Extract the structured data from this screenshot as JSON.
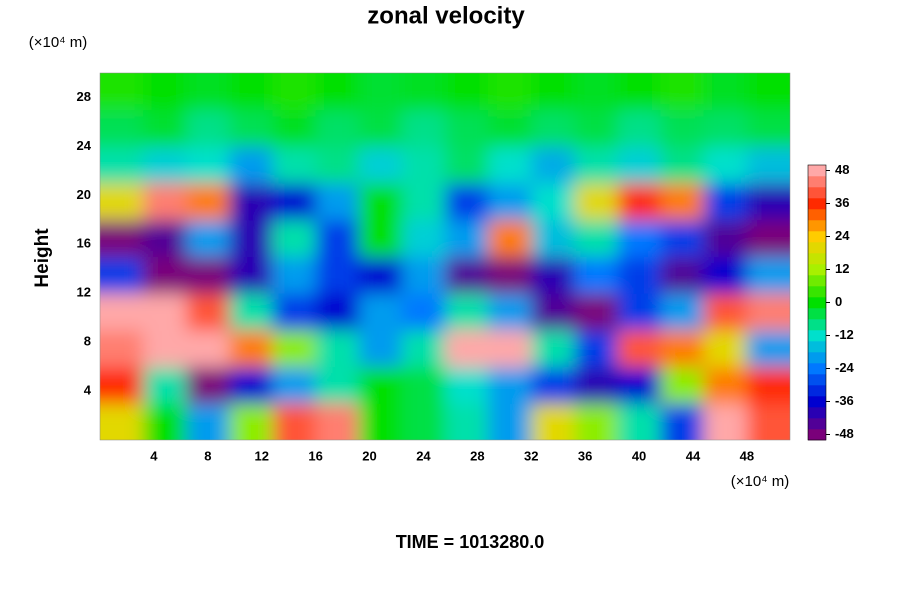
{
  "chart_data": {
    "type": "heatmap",
    "title": "zonal velocity",
    "y_unit": "(×10⁴ m)",
    "x_unit": "(×10⁴ m)",
    "ylabel": "Height",
    "footer": "TIME = 1013280.0",
    "xlim": [
      0,
      51.2
    ],
    "ylim": [
      0,
      30
    ],
    "xticks": [
      4,
      8,
      12,
      16,
      20,
      24,
      28,
      32,
      36,
      40,
      44,
      48
    ],
    "yticks": [
      4,
      8,
      12,
      16,
      20,
      24,
      28
    ],
    "clim": [
      -50,
      50
    ],
    "cticks": [
      48,
      36,
      24,
      12,
      0,
      -12,
      -24,
      -36,
      -48
    ],
    "colorscale": [
      "#ffa8a8",
      "#ff2a00",
      "#ffcc00",
      "#a8f000",
      "#00e000",
      "#00e0cc",
      "#0078ff",
      "#0000d0",
      "#7a007a"
    ],
    "x": [
      1.6,
      4.8,
      8,
      11.2,
      14.4,
      17.6,
      20.8,
      24,
      27.2,
      30.4,
      33.6,
      36.8,
      40,
      43.2,
      46.4,
      49.6
    ],
    "y": [
      1.5,
      4.5,
      7.5,
      10.5,
      13.5,
      16.5,
      19.5,
      22.5,
      25.5,
      28.5
    ],
    "z": [
      [
        20,
        0,
        -20,
        10,
        40,
        44,
        0,
        -4,
        -10,
        -20,
        20,
        10,
        -10,
        -30,
        48,
        40
      ],
      [
        36,
        -10,
        -48,
        -36,
        -20,
        -10,
        0,
        -4,
        -12,
        -20,
        -30,
        -40,
        -36,
        10,
        30,
        36
      ],
      [
        44,
        48,
        48,
        30,
        10,
        -10,
        -20,
        -10,
        48,
        48,
        -10,
        -30,
        40,
        30,
        20,
        -20
      ],
      [
        48,
        48,
        40,
        -10,
        -30,
        -36,
        -20,
        -24,
        -10,
        -20,
        -44,
        -48,
        -30,
        -20,
        40,
        44
      ],
      [
        -30,
        -48,
        -48,
        -40,
        -20,
        -30,
        -36,
        -20,
        -44,
        -48,
        -40,
        -24,
        -30,
        -44,
        -36,
        -20
      ],
      [
        -48,
        -44,
        -20,
        -40,
        -10,
        -30,
        0,
        -14,
        -20,
        30,
        -16,
        -10,
        -24,
        -30,
        -44,
        -48
      ],
      [
        20,
        44,
        30,
        -40,
        -36,
        -20,
        0,
        -10,
        -30,
        -20,
        -12,
        20,
        36,
        30,
        -30,
        -40
      ],
      [
        -10,
        -14,
        -12,
        -20,
        -10,
        -8,
        -14,
        -10,
        -6,
        -12,
        -18,
        -10,
        -14,
        -8,
        -12,
        -16
      ],
      [
        -5,
        -3,
        -8,
        -5,
        -2,
        -6,
        -4,
        -8,
        -5,
        -3,
        -6,
        -4,
        -8,
        -5,
        -6,
        -4
      ],
      [
        2,
        0,
        -2,
        0,
        2,
        0,
        -3,
        -2,
        0,
        2,
        0,
        -2,
        0,
        2,
        -2,
        0
      ]
    ]
  }
}
